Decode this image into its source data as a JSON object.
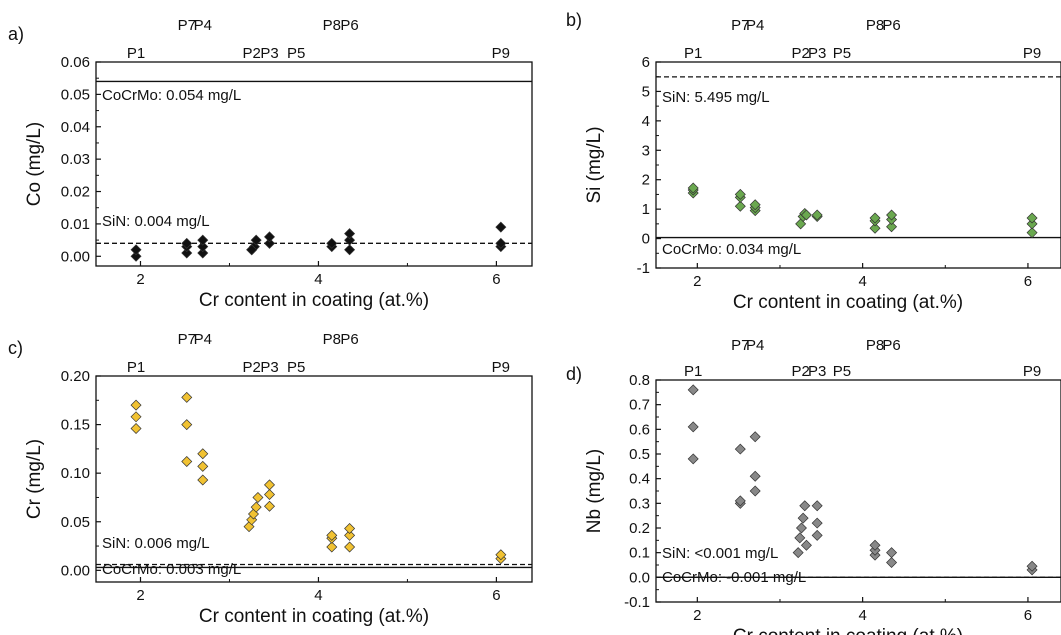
{
  "chart_data": [
    {
      "panel": "a)",
      "type": "scatter",
      "xlabel": "Cr content in coating (at.%)",
      "ylabel": "Co (mg/L)",
      "xlim": [
        1.5,
        6.4
      ],
      "ylim": [
        -0.003,
        0.06
      ],
      "xticks": [
        2,
        4,
        6
      ],
      "yticks": [
        0.0,
        0.01,
        0.02,
        0.03,
        0.04,
        0.05,
        0.06
      ],
      "ytick_labels": [
        "0.00",
        "0.01",
        "0.02",
        "0.03",
        "0.04",
        "0.05",
        "0.06"
      ],
      "marker_color": "#111111",
      "samples": [
        {
          "label": "P1",
          "x": 1.95
        },
        {
          "label": "P7",
          "x": 2.52
        },
        {
          "label": "P4",
          "x": 2.7
        },
        {
          "label": "P2",
          "x": 3.25
        },
        {
          "label": "P3",
          "x": 3.45
        },
        {
          "label": "P5",
          "x": 3.75
        },
        {
          "label": "P8",
          "x": 4.15
        },
        {
          "label": "P6",
          "x": 4.35
        },
        {
          "label": "P9",
          "x": 6.05
        }
      ],
      "reference_lines": [
        {
          "text": "CoCrMo: 0.054 mg/L",
          "y": 0.054,
          "style": "solid"
        },
        {
          "text": "SiN: 0.004 mg/L",
          "y": 0.004,
          "style": "dashed"
        }
      ],
      "points": [
        {
          "x": 1.95,
          "y": 0.0
        },
        {
          "x": 1.95,
          "y": 0.002
        },
        {
          "x": 2.52,
          "y": 0.001
        },
        {
          "x": 2.52,
          "y": 0.003
        },
        {
          "x": 2.52,
          "y": 0.004
        },
        {
          "x": 2.7,
          "y": 0.001
        },
        {
          "x": 2.7,
          "y": 0.003
        },
        {
          "x": 2.7,
          "y": 0.005
        },
        {
          "x": 3.25,
          "y": 0.002
        },
        {
          "x": 3.28,
          "y": 0.003
        },
        {
          "x": 3.3,
          "y": 0.005
        },
        {
          "x": 3.25,
          "y": 0.002
        },
        {
          "x": 3.45,
          "y": 0.004
        },
        {
          "x": 3.45,
          "y": 0.006
        },
        {
          "x": 4.15,
          "y": 0.003
        },
        {
          "x": 4.15,
          "y": 0.004
        },
        {
          "x": 4.35,
          "y": 0.002
        },
        {
          "x": 4.35,
          "y": 0.005
        },
        {
          "x": 4.35,
          "y": 0.007
        },
        {
          "x": 6.05,
          "y": 0.003
        },
        {
          "x": 6.05,
          "y": 0.004
        },
        {
          "x": 6.05,
          "y": 0.009
        }
      ]
    },
    {
      "panel": "b)",
      "type": "scatter",
      "xlabel": "Cr content in coating (at.%)",
      "ylabel": "Si (mg/L)",
      "xlim": [
        1.5,
        6.4
      ],
      "ylim": [
        -1,
        6
      ],
      "xticks": [
        2,
        4,
        6
      ],
      "yticks": [
        -1,
        0,
        1,
        2,
        3,
        4,
        5,
        6
      ],
      "ytick_labels": [
        "-1",
        "0",
        "1",
        "2",
        "3",
        "4",
        "5",
        "6"
      ],
      "marker_color": "#6aa84f",
      "samples": [
        {
          "label": "P1",
          "x": 1.95
        },
        {
          "label": "P7",
          "x": 2.52
        },
        {
          "label": "P4",
          "x": 2.7
        },
        {
          "label": "P2",
          "x": 3.25
        },
        {
          "label": "P3",
          "x": 3.45
        },
        {
          "label": "P5",
          "x": 3.75
        },
        {
          "label": "P8",
          "x": 4.15
        },
        {
          "label": "P6",
          "x": 4.35
        },
        {
          "label": "P9",
          "x": 6.05
        }
      ],
      "reference_lines": [
        {
          "text": "SiN: 5.495 mg/L",
          "y": 5.495,
          "style": "dashed"
        },
        {
          "text": "CoCrMo: 0.034 mg/L",
          "y": 0.034,
          "style": "solid"
        }
      ],
      "points": [
        {
          "x": 1.95,
          "y": 1.55
        },
        {
          "x": 1.95,
          "y": 1.65
        },
        {
          "x": 1.95,
          "y": 1.72
        },
        {
          "x": 2.52,
          "y": 1.1
        },
        {
          "x": 2.52,
          "y": 1.4
        },
        {
          "x": 2.52,
          "y": 1.5
        },
        {
          "x": 2.7,
          "y": 0.95
        },
        {
          "x": 2.7,
          "y": 1.05
        },
        {
          "x": 2.7,
          "y": 1.15
        },
        {
          "x": 3.25,
          "y": 0.5
        },
        {
          "x": 3.28,
          "y": 0.75
        },
        {
          "x": 3.3,
          "y": 0.85
        },
        {
          "x": 3.32,
          "y": 0.8
        },
        {
          "x": 3.45,
          "y": 0.75
        },
        {
          "x": 3.45,
          "y": 0.8
        },
        {
          "x": 4.15,
          "y": 0.35
        },
        {
          "x": 4.15,
          "y": 0.6
        },
        {
          "x": 4.15,
          "y": 0.7
        },
        {
          "x": 4.35,
          "y": 0.4
        },
        {
          "x": 4.35,
          "y": 0.65
        },
        {
          "x": 4.35,
          "y": 0.8
        },
        {
          "x": 6.05,
          "y": 0.2
        },
        {
          "x": 6.05,
          "y": 0.5
        },
        {
          "x": 6.05,
          "y": 0.7
        }
      ]
    },
    {
      "panel": "c)",
      "type": "scatter",
      "xlabel": "Cr content in coating (at.%)",
      "ylabel": "Cr (mg/L)",
      "xlim": [
        1.5,
        6.4
      ],
      "ylim": [
        -0.012,
        0.2
      ],
      "xticks": [
        2,
        4,
        6
      ],
      "yticks": [
        0.0,
        0.05,
        0.1,
        0.15,
        0.2
      ],
      "ytick_labels": [
        "0.00",
        "0.05",
        "0.10",
        "0.15",
        "0.20"
      ],
      "marker_color": "#f1c232",
      "samples": [
        {
          "label": "P1",
          "x": 1.95
        },
        {
          "label": "P7",
          "x": 2.52
        },
        {
          "label": "P4",
          "x": 2.7
        },
        {
          "label": "P2",
          "x": 3.25
        },
        {
          "label": "P3",
          "x": 3.45
        },
        {
          "label": "P5",
          "x": 3.75
        },
        {
          "label": "P8",
          "x": 4.15
        },
        {
          "label": "P6",
          "x": 4.35
        },
        {
          "label": "P9",
          "x": 6.05
        }
      ],
      "reference_lines": [
        {
          "text": "SiN: 0.006 mg/L",
          "y": 0.006,
          "style": "dashed"
        },
        {
          "text": "CoCrMo: 0.003 mg/L",
          "y": 0.003,
          "style": "solid"
        }
      ],
      "points": [
        {
          "x": 1.95,
          "y": 0.146
        },
        {
          "x": 1.95,
          "y": 0.158
        },
        {
          "x": 1.95,
          "y": 0.17
        },
        {
          "x": 2.52,
          "y": 0.112
        },
        {
          "x": 2.52,
          "y": 0.15
        },
        {
          "x": 2.52,
          "y": 0.178
        },
        {
          "x": 2.7,
          "y": 0.093
        },
        {
          "x": 2.7,
          "y": 0.107
        },
        {
          "x": 2.7,
          "y": 0.12
        },
        {
          "x": 3.22,
          "y": 0.045
        },
        {
          "x": 3.25,
          "y": 0.052
        },
        {
          "x": 3.27,
          "y": 0.058
        },
        {
          "x": 3.3,
          "y": 0.065
        },
        {
          "x": 3.32,
          "y": 0.075
        },
        {
          "x": 3.45,
          "y": 0.066
        },
        {
          "x": 3.45,
          "y": 0.078
        },
        {
          "x": 3.45,
          "y": 0.088
        },
        {
          "x": 4.15,
          "y": 0.024
        },
        {
          "x": 4.15,
          "y": 0.033
        },
        {
          "x": 4.15,
          "y": 0.036
        },
        {
          "x": 4.35,
          "y": 0.024
        },
        {
          "x": 4.35,
          "y": 0.036
        },
        {
          "x": 4.35,
          "y": 0.043
        },
        {
          "x": 6.05,
          "y": 0.012
        },
        {
          "x": 6.05,
          "y": 0.016
        }
      ]
    },
    {
      "panel": "d)",
      "type": "scatter",
      "xlabel": "Cr content in coating (at.%)",
      "ylabel": "Nb (mg/L)",
      "xlim": [
        1.5,
        6.4
      ],
      "ylim": [
        -0.1,
        0.8
      ],
      "xticks": [
        2,
        4,
        6
      ],
      "yticks": [
        -0.1,
        0.0,
        0.1,
        0.2,
        0.3,
        0.4,
        0.5,
        0.6,
        0.7,
        0.8
      ],
      "ytick_labels": [
        "-0.1",
        "0.0",
        "0.1",
        "0.2",
        "0.3",
        "0.4",
        "0.5",
        "0.6",
        "0.7",
        "0.8"
      ],
      "marker_color": "#888888",
      "samples": [
        {
          "label": "P1",
          "x": 1.95
        },
        {
          "label": "P7",
          "x": 2.52
        },
        {
          "label": "P4",
          "x": 2.7
        },
        {
          "label": "P2",
          "x": 3.25
        },
        {
          "label": "P3",
          "x": 3.45
        },
        {
          "label": "P5",
          "x": 3.75
        },
        {
          "label": "P8",
          "x": 4.15
        },
        {
          "label": "P6",
          "x": 4.35
        },
        {
          "label": "P9",
          "x": 6.05
        }
      ],
      "reference_lines": [
        {
          "text": "SiN: <0.001 mg/L",
          "y": 0.0,
          "style": "dashed"
        },
        {
          "text": "CoCrMo: -0.001 mg/L",
          "y": 0.0,
          "style": "solid"
        }
      ],
      "points": [
        {
          "x": 1.95,
          "y": 0.48
        },
        {
          "x": 1.95,
          "y": 0.61
        },
        {
          "x": 1.95,
          "y": 0.76
        },
        {
          "x": 2.52,
          "y": 0.3
        },
        {
          "x": 2.52,
          "y": 0.31
        },
        {
          "x": 2.52,
          "y": 0.52
        },
        {
          "x": 2.7,
          "y": 0.35
        },
        {
          "x": 2.7,
          "y": 0.41
        },
        {
          "x": 2.7,
          "y": 0.57
        },
        {
          "x": 3.22,
          "y": 0.1
        },
        {
          "x": 3.24,
          "y": 0.16
        },
        {
          "x": 3.26,
          "y": 0.2
        },
        {
          "x": 3.28,
          "y": 0.24
        },
        {
          "x": 3.3,
          "y": 0.29
        },
        {
          "x": 3.32,
          "y": 0.13
        },
        {
          "x": 3.45,
          "y": 0.17
        },
        {
          "x": 3.45,
          "y": 0.22
        },
        {
          "x": 3.45,
          "y": 0.29
        },
        {
          "x": 4.15,
          "y": 0.09
        },
        {
          "x": 4.15,
          "y": 0.11
        },
        {
          "x": 4.15,
          "y": 0.13
        },
        {
          "x": 4.35,
          "y": 0.06
        },
        {
          "x": 4.35,
          "y": 0.1
        },
        {
          "x": 6.05,
          "y": 0.03
        },
        {
          "x": 6.05,
          "y": 0.045
        }
      ]
    }
  ]
}
